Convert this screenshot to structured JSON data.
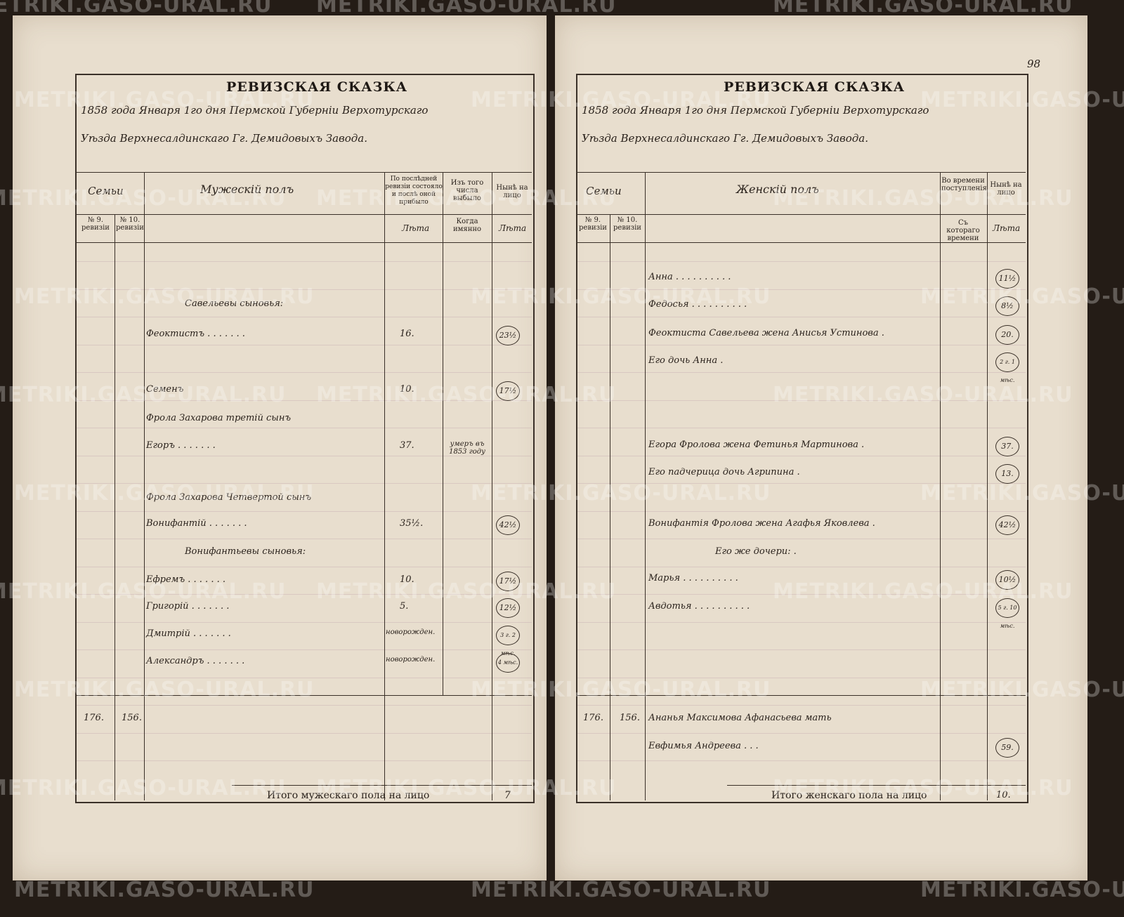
{
  "watermark": "METRIKI.GASO-URAL.RU",
  "page_number": "98",
  "left": {
    "title": "РЕВИЗСКАЯ СКАЗКА",
    "line1": "1858 года Января 1го дня Пермской Губерніи Верхотурскаго",
    "line2": "Уѣзда Верхнесалдинскаго Гг. Демидовыхъ Завода.",
    "headers": {
      "families": "Семьи",
      "section": "Мужескій полъ",
      "rev9": "№ 9. ревизіи",
      "rev10": "№ 10. ревизіи",
      "last_revision": "По послѣдней ревизіи состояло и послѣ оной прибыло",
      "departed": "Изъ того числа выбыло",
      "present": "Нынѣ на лицо",
      "years1": "Лѣта",
      "when": "Когда имянно",
      "years2": "Лѣта"
    },
    "rows": [
      {
        "name": "Савельевы сыновья:",
        "indent": true
      },
      {
        "name": "Феоктистъ",
        "dots": true,
        "prev": "16.",
        "now": "23½"
      },
      {
        "name": "Семенъ",
        "prev": "10.",
        "now": "17½"
      },
      {
        "name": "Фрола Захарова третій сынъ"
      },
      {
        "name": "Егоръ",
        "dots": true,
        "prev": "37.",
        "when": "умеръ въ 1853 году"
      },
      {
        "name": "Фрола Захарова Четвертой сынъ"
      },
      {
        "name": "Вонифантій",
        "dots": true,
        "prev": "35½.",
        "now": "42½"
      },
      {
        "name": "Вонифантьевы сыновья:",
        "indent": true
      },
      {
        "name": "Ефремъ",
        "dots": true,
        "prev": "10.",
        "now": "17½"
      },
      {
        "name": "Григорій",
        "dots": true,
        "prev": "5.",
        "now": "12½"
      },
      {
        "name": "Дмитрій",
        "dots": true,
        "prev": "новорожден.",
        "now": "3 г. 2 мѣс."
      },
      {
        "name": "Александръ",
        "dots": true,
        "prev": "новорожден.",
        "now": "4 мѣс."
      }
    ],
    "family_row": {
      "rev9": "176.",
      "rev10": "156."
    },
    "total_label": "Итого мужескаго пола на лицо",
    "total_value": "7"
  },
  "right": {
    "title": "РЕВИЗСКАЯ СКАЗКА",
    "line1": "1858 года Января 1го дня Пермской Губерніи Верхотурскаго",
    "line2": "Уѣзда Верхнесалдинскаго Гг. Демидовыхъ Завода.",
    "headers": {
      "families": "Семьи",
      "section": "Женскій полъ",
      "rev9": "№ 9. ревизіи",
      "rev10": "№ 10. ревизіи",
      "since": "Во времени поступленія",
      "present": "Нынѣ на лицо",
      "since_when": "Съ котораго времени",
      "years": "Лѣта"
    },
    "rows": [
      {
        "name": "Анна",
        "now": "11½"
      },
      {
        "name": "Федосья",
        "now": "8½"
      },
      {
        "name": "Феоктиста Савельева жена Анисья Устинова",
        "now": "20."
      },
      {
        "name": "Его дочь Анна",
        "now": "2 г. 1 мѣс."
      },
      {
        "name": ""
      },
      {
        "name": ""
      },
      {
        "name": "Егора Фролова жена Фетинья Мартинова",
        "now": "37."
      },
      {
        "name": "Его падчерица дочь Агрипина",
        "now": "13."
      },
      {
        "name": ""
      },
      {
        "name": "Вонифантія Фролова жена Агафья Яковлева",
        "now": "42½"
      },
      {
        "name": "Его же дочери:",
        "indent": true
      },
      {
        "name": "Марья",
        "now": "10½"
      },
      {
        "name": "Авдотья",
        "now": "5 г. 10 мѣс."
      }
    ],
    "family_row": {
      "rev9": "176.",
      "rev10": "156.",
      "name": "Ананья Максимова Афанасьева мать",
      "name2": "Евфимья Андреева",
      "now": "59."
    },
    "total_label": "Итого женскаго пола на лицо",
    "total_value": "10."
  }
}
